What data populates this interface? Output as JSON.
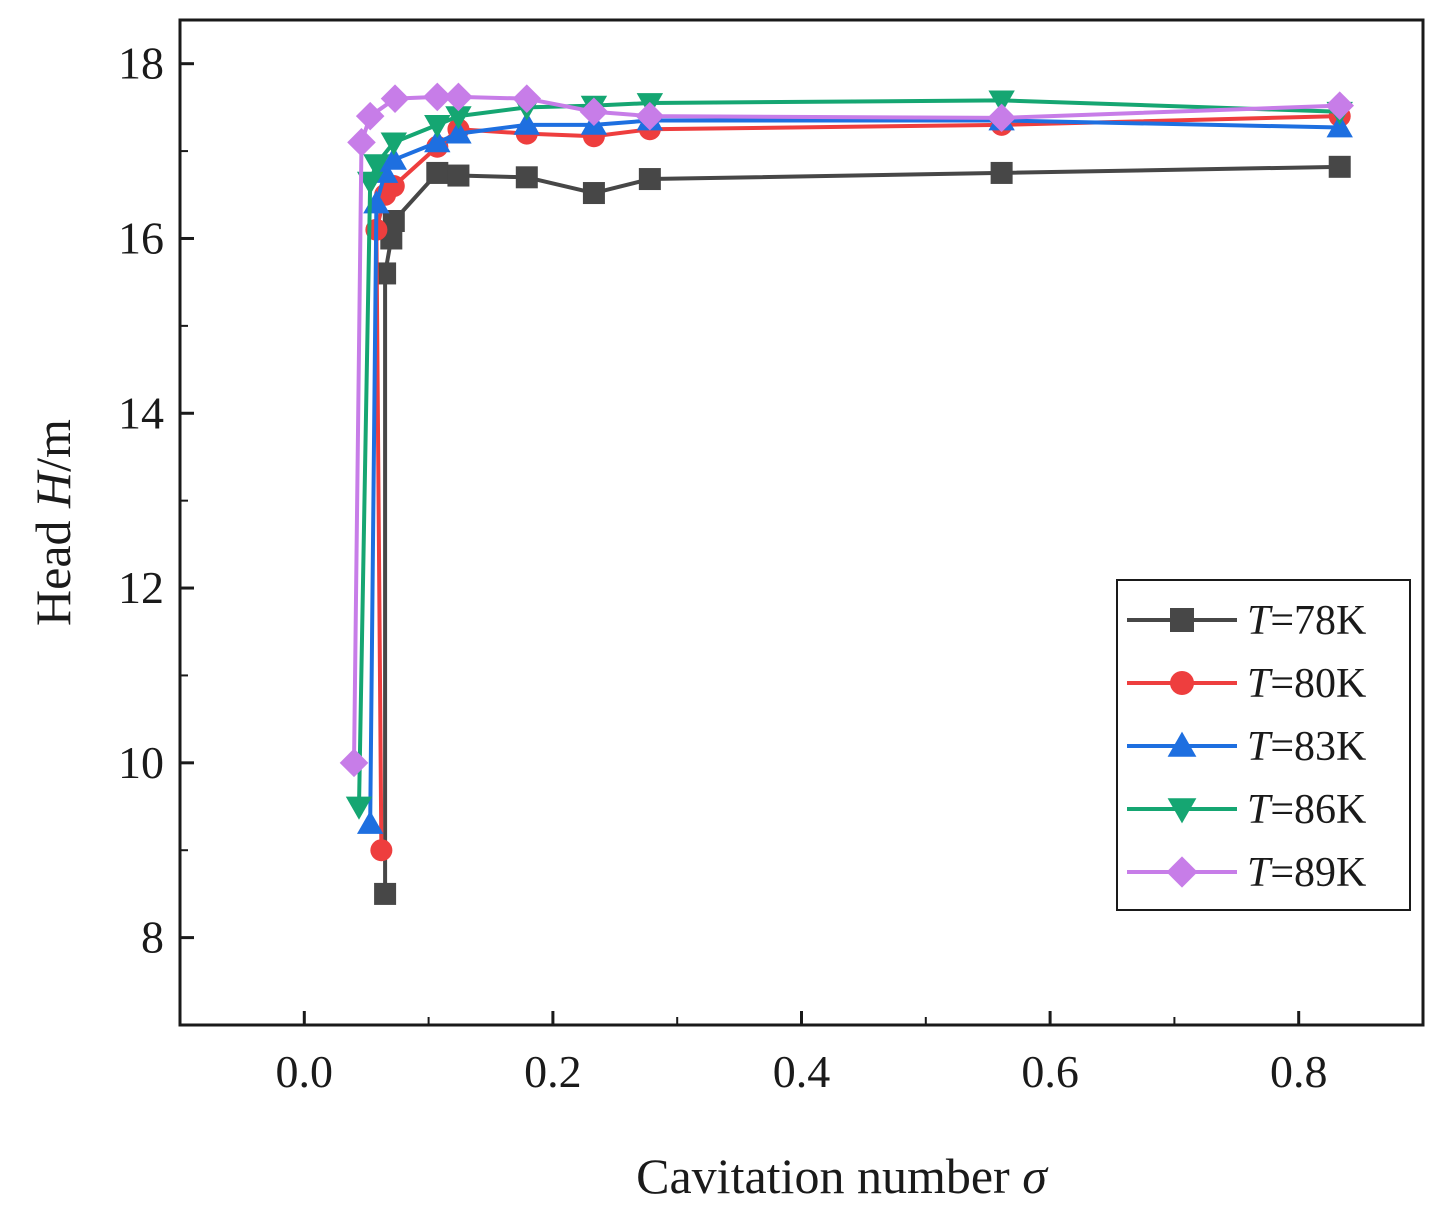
{
  "chart_data": {
    "type": "line",
    "xlabel": {
      "prefix": "Cavitation number ",
      "symbol": "σ"
    },
    "ylabel": {
      "prefix": "Head ",
      "symbol": "H",
      "suffix": "/m"
    },
    "xlim": [
      -0.1,
      0.9
    ],
    "ylim": [
      7.0,
      18.5
    ],
    "x_ticks": [
      0.0,
      0.2,
      0.4,
      0.6,
      0.8
    ],
    "x_tick_labels": [
      "0.0",
      "0.2",
      "0.4",
      "0.6",
      "0.8"
    ],
    "y_ticks": [
      8,
      10,
      12,
      14,
      16,
      18
    ],
    "y_tick_labels": [
      "8",
      "10",
      "12",
      "14",
      "16",
      "18"
    ],
    "grid": false,
    "legend_position": "lower-right",
    "series": [
      {
        "name": "T=78K",
        "name_var": "T",
        "name_rest": "=78K",
        "color": "#474747",
        "marker": "square",
        "x": [
          0.065,
          0.065,
          0.07,
          0.072,
          0.107,
          0.124,
          0.179,
          0.233,
          0.278,
          0.561,
          0.833
        ],
        "y": [
          8.5,
          15.6,
          16.0,
          16.2,
          16.75,
          16.72,
          16.7,
          16.52,
          16.68,
          16.75,
          16.82
        ]
      },
      {
        "name": "T=80K",
        "name_var": "T",
        "name_rest": "=80K",
        "color": "#ee3e3e",
        "marker": "circle",
        "x": [
          0.062,
          0.058,
          0.065,
          0.072,
          0.107,
          0.124,
          0.179,
          0.233,
          0.278,
          0.561,
          0.833
        ],
        "y": [
          9.0,
          16.1,
          16.5,
          16.6,
          17.05,
          17.25,
          17.2,
          17.17,
          17.25,
          17.3,
          17.4
        ]
      },
      {
        "name": "T=83K",
        "name_var": "T",
        "name_rest": "=83K",
        "color": "#1e6fe0",
        "marker": "triangle-up",
        "x": [
          0.053,
          0.058,
          0.065,
          0.072,
          0.107,
          0.124,
          0.179,
          0.233,
          0.278,
          0.561,
          0.833
        ],
        "y": [
          9.3,
          16.4,
          16.75,
          16.9,
          17.1,
          17.2,
          17.3,
          17.3,
          17.35,
          17.35,
          17.27
        ]
      },
      {
        "name": "T=86K",
        "name_var": "T",
        "name_rest": "=86K",
        "color": "#15a672",
        "marker": "triangle-down",
        "x": [
          0.044,
          0.053,
          0.058,
          0.072,
          0.107,
          0.124,
          0.179,
          0.233,
          0.278,
          0.561,
          0.833
        ],
        "y": [
          9.5,
          16.65,
          16.85,
          17.1,
          17.3,
          17.4,
          17.5,
          17.52,
          17.55,
          17.58,
          17.45
        ]
      },
      {
        "name": "T=89K",
        "name_var": "T",
        "name_rest": "=89K",
        "color": "#c77de8",
        "marker": "diamond",
        "x": [
          0.04,
          0.046,
          0.053,
          0.073,
          0.107,
          0.124,
          0.179,
          0.233,
          0.278,
          0.561,
          0.833
        ],
        "y": [
          10.0,
          17.1,
          17.4,
          17.6,
          17.62,
          17.62,
          17.6,
          17.45,
          17.4,
          17.38,
          17.52
        ]
      }
    ]
  }
}
